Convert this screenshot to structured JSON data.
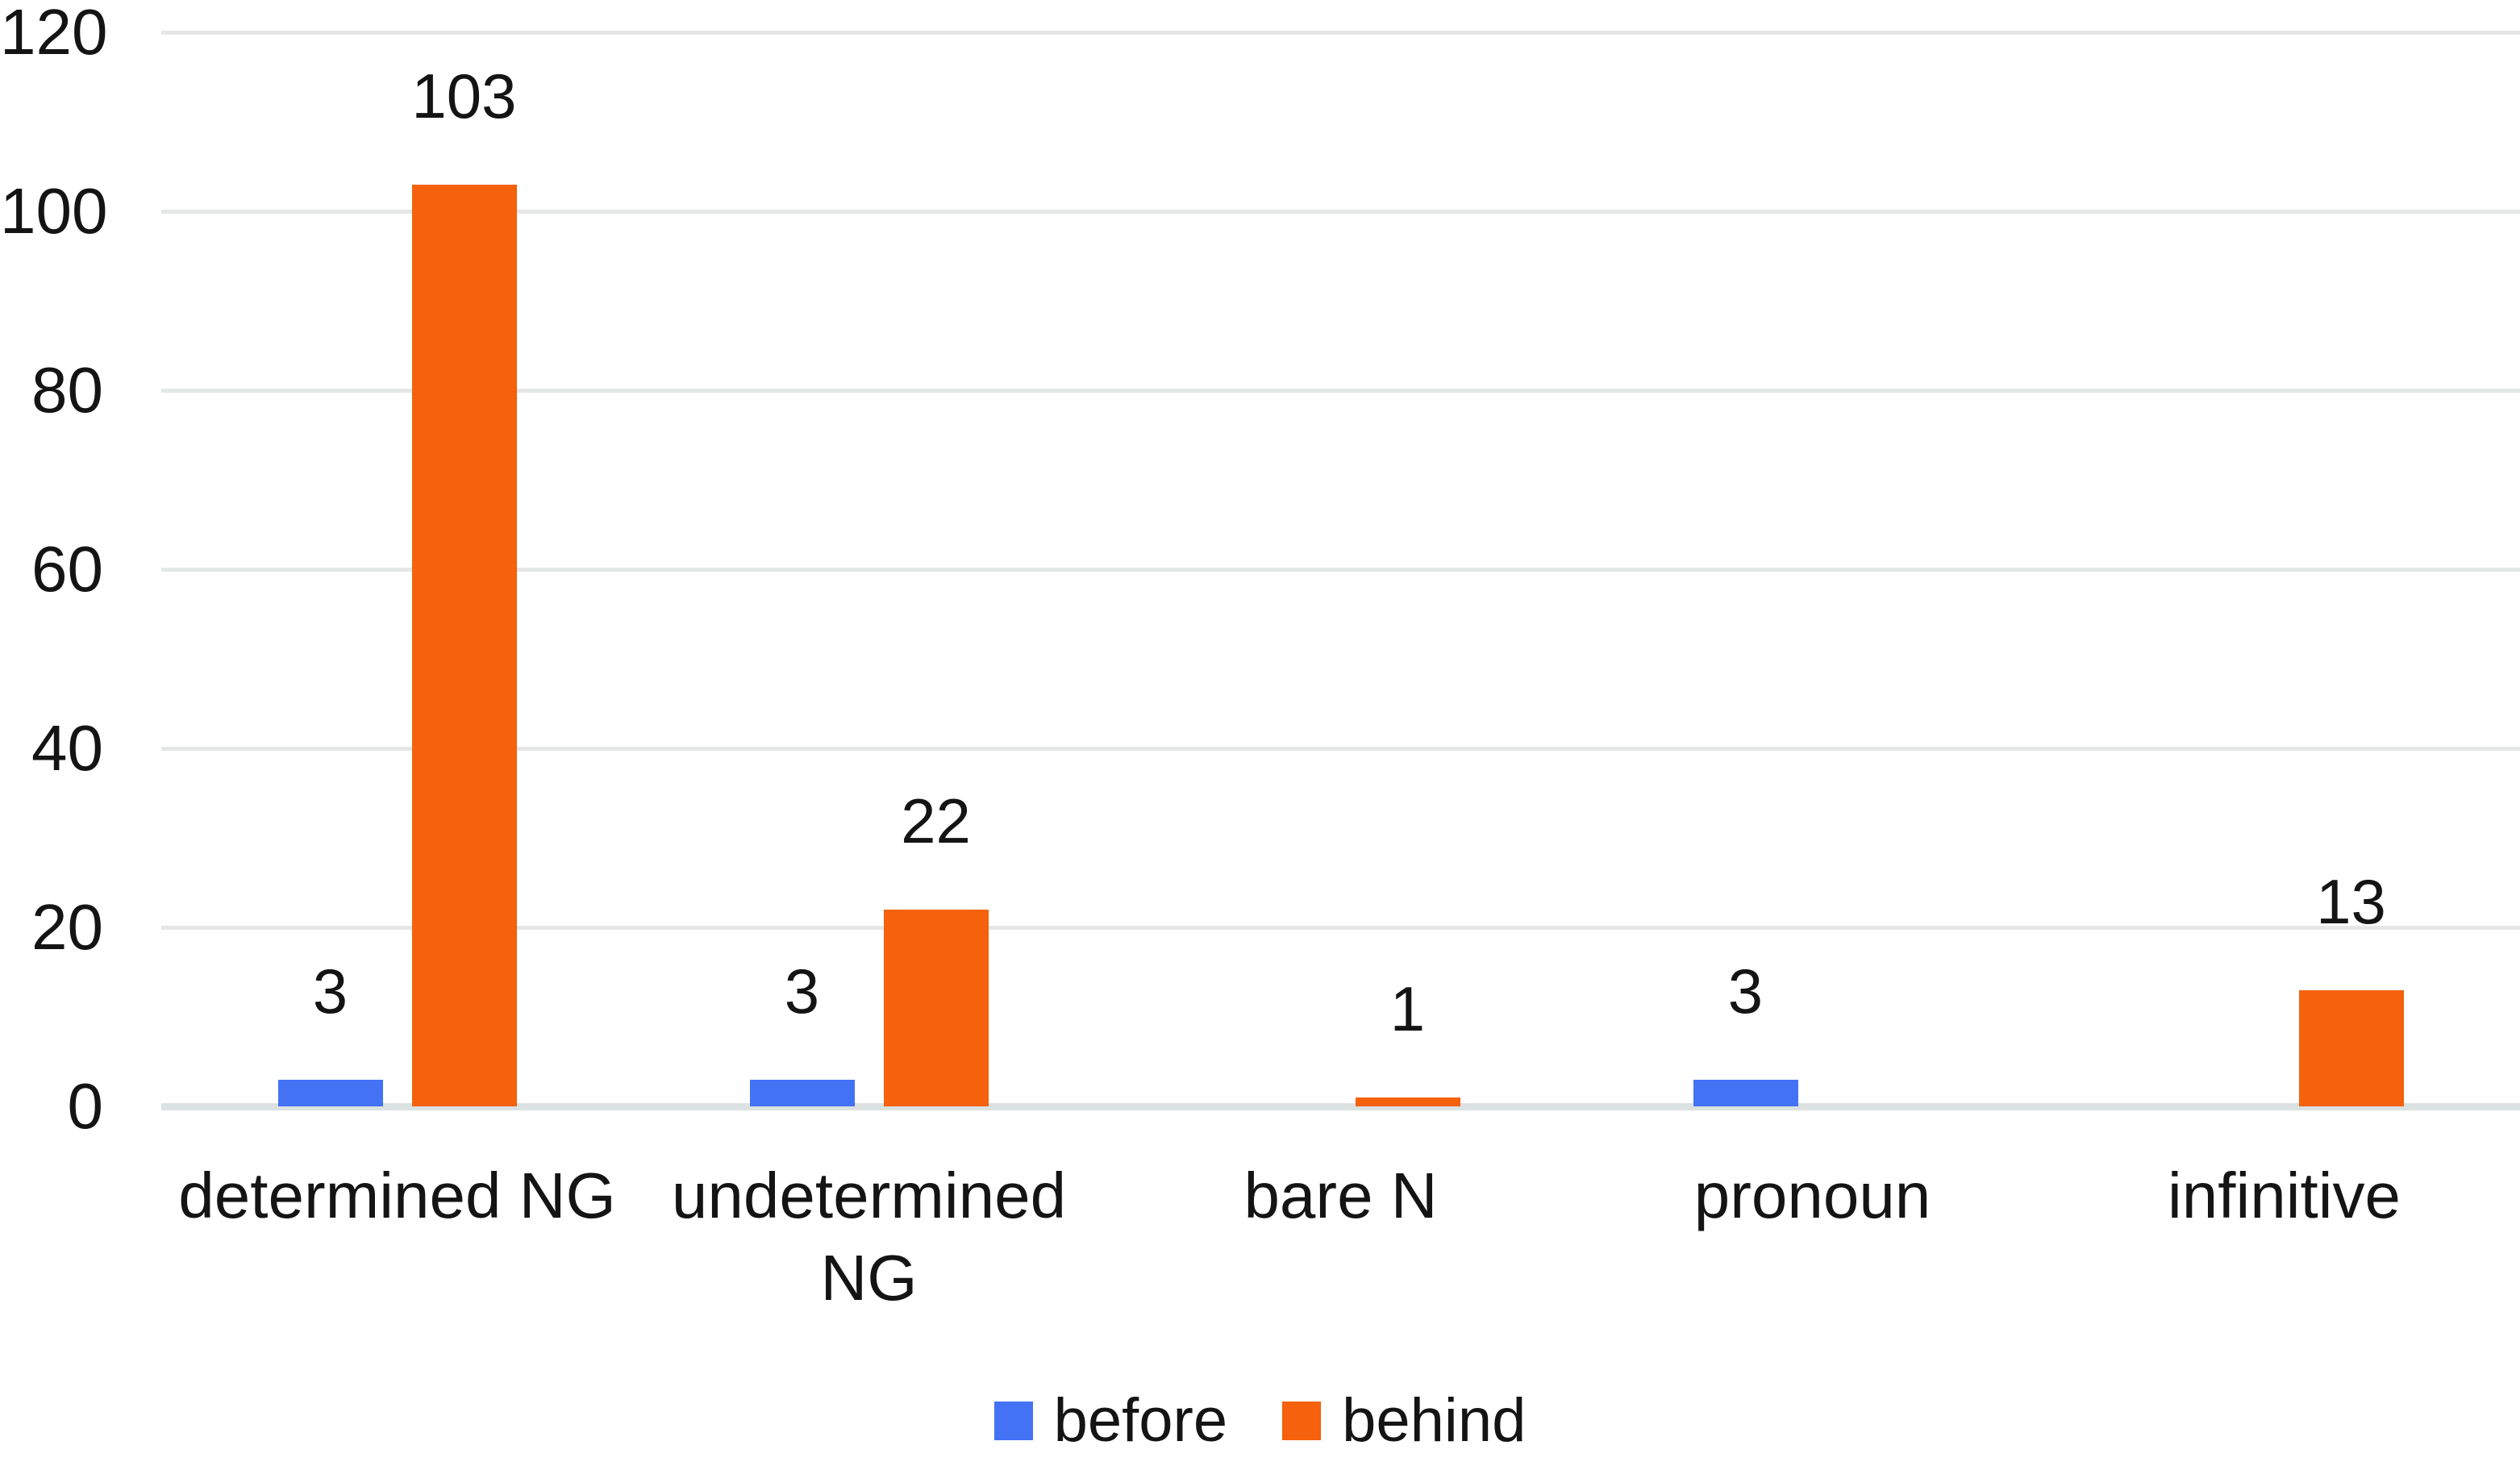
{
  "figure": {
    "background": "#ffffff",
    "text_color": "#141414",
    "gridline_color": "#e4e7e6",
    "axis_line_color": "#dbe2e1"
  },
  "chart_data": {
    "type": "bar",
    "title": "",
    "xlabel": "",
    "ylabel": "",
    "categories": [
      "determined NG",
      "undetermined NG",
      "bare N",
      "pronoun",
      "infinitive"
    ],
    "category_label_lines": [
      [
        "determined NG"
      ],
      [
        "undetermined",
        "NG"
      ],
      [
        "bare N"
      ],
      [
        "pronoun"
      ],
      [
        "infinitive"
      ]
    ],
    "series": [
      {
        "name": "before",
        "color": "#4372f5",
        "values": [
          3,
          3,
          null,
          3,
          null
        ]
      },
      {
        "name": "behind",
        "color": "#f5610d",
        "values": [
          103,
          22,
          1,
          null,
          13
        ]
      }
    ],
    "ylim": [
      0,
      120
    ],
    "ytick_step": 20,
    "ytick_labels": [
      "0",
      "20",
      "40",
      "60",
      "80",
      "100",
      "120"
    ],
    "grid": true,
    "data_labels_shown": true,
    "legend_position": "bottom"
  }
}
